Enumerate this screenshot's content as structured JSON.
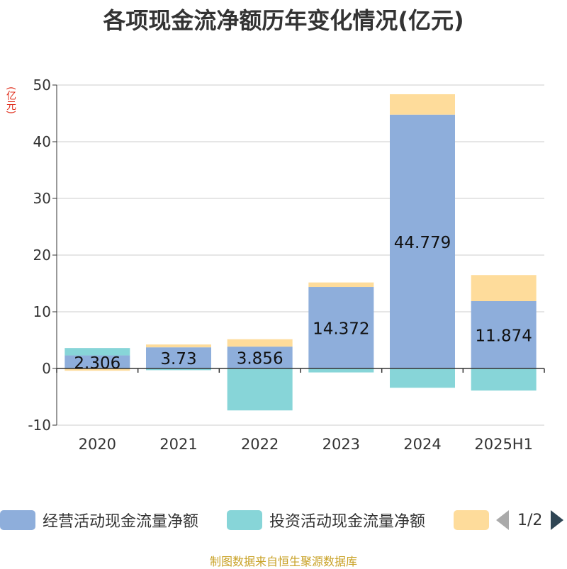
{
  "title": "各项现金流净额历年变化情况(亿元)",
  "unit_label": "(亿元)",
  "source": "制图数据来自恒生聚源数据库",
  "pager": {
    "text": "1/2"
  },
  "chart_data": {
    "type": "bar",
    "stacked": true,
    "categories": [
      "2020",
      "2021",
      "2022",
      "2023",
      "2024",
      "2025H1"
    ],
    "ylim": [
      -10,
      50
    ],
    "yticks": [
      -10,
      0,
      10,
      20,
      30,
      40,
      50
    ],
    "grid": true,
    "series": [
      {
        "name": "经营活动现金流量净额",
        "color": "#8eaedb",
        "values": [
          2.306,
          3.73,
          3.856,
          14.372,
          44.779,
          11.874
        ],
        "show_labels": true
      },
      {
        "name": "投资活动现金流量净额",
        "color": "#87d5d8",
        "values": [
          1.3,
          -0.3,
          -7.4,
          -0.7,
          -3.4,
          -3.9
        ],
        "show_labels": false
      },
      {
        "name": "",
        "color": "#fedc9b",
        "values": [
          -0.4,
          0.5,
          1.3,
          0.8,
          3.6,
          4.6
        ],
        "show_labels": false
      }
    ]
  }
}
